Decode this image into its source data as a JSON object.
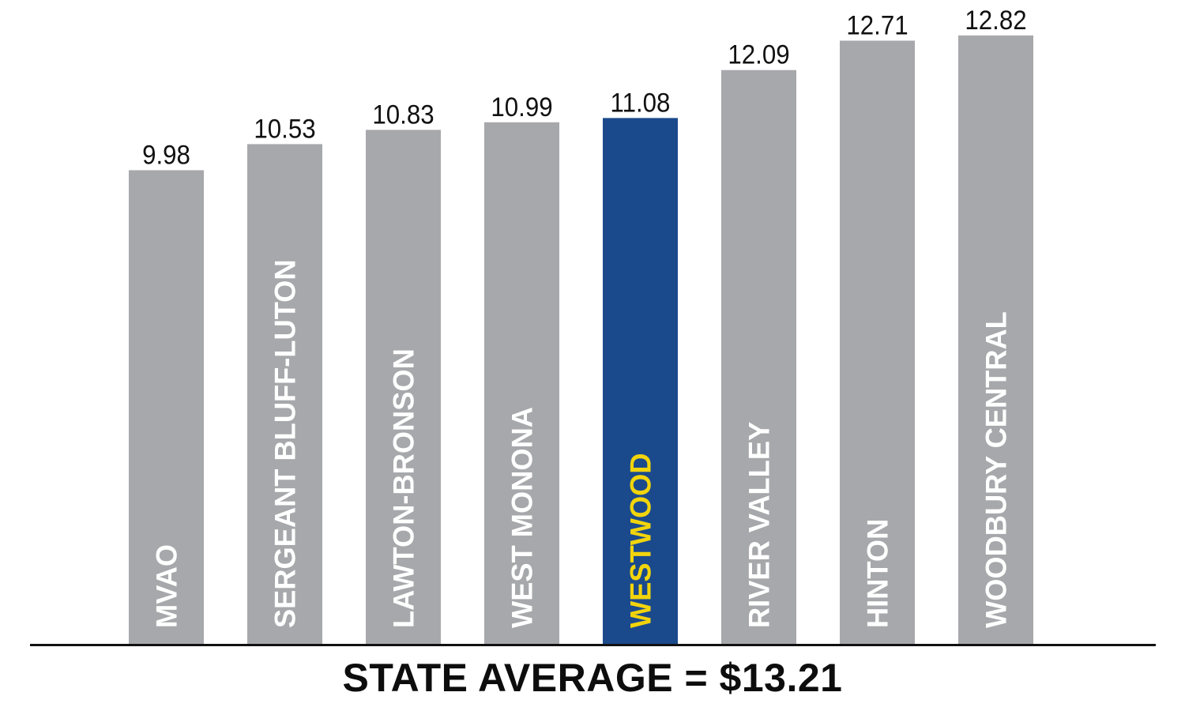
{
  "chart_data": {
    "type": "bar",
    "categories": [
      "MVAO",
      "SERGEANT BLUFF-LUTON",
      "LAWTON-BRONSON",
      "WEST MONONA",
      "WESTWOOD",
      "RIVER VALLEY",
      "HINTON",
      "WOODBURY CENTRAL"
    ],
    "values": [
      9.98,
      10.53,
      10.83,
      10.99,
      11.08,
      12.09,
      12.71,
      12.82
    ],
    "value_labels": [
      "9.98",
      "10.53",
      "10.83",
      "10.99",
      "11.08",
      "12.09",
      "12.71",
      "12.82"
    ],
    "highlight_category": "WESTWOOD",
    "ylim": [
      0,
      13.5
    ],
    "grid": false,
    "legend": "none",
    "footer": "STATE AVERAGE = $13.21",
    "colors": {
      "bar": "#a7a8ab",
      "highlight_bar": "#1b4a8c",
      "category_label": "#ffffff",
      "highlight_label": "#f2d40c",
      "value_label": "#111111",
      "axis": "#111111"
    }
  }
}
